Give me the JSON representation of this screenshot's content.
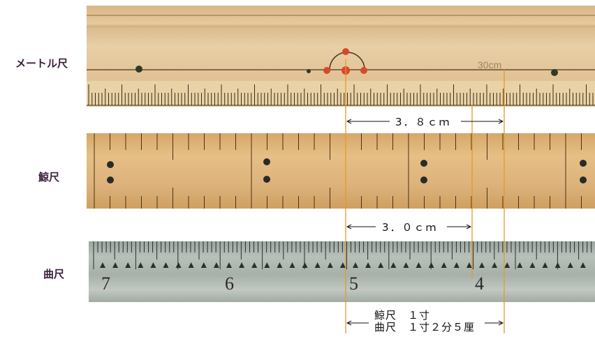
{
  "labels": {
    "metric": "メートル尺",
    "kujira": "鯨尺",
    "kane": "曲尺"
  },
  "metric_ruler": {
    "engraving": "30cm"
  },
  "kane_ruler": {
    "numbers": [
      "7",
      "6",
      "5",
      "4"
    ]
  },
  "measurements": {
    "m1": "3．８ｃｍ",
    "m2": "3．０ｃｍ",
    "m3_line1": "鯨尺　１寸",
    "m3_line2": "曲尺　１寸２分５厘"
  },
  "colors": {
    "guide": "#e39a2a",
    "label": "#3a1f3a"
  }
}
